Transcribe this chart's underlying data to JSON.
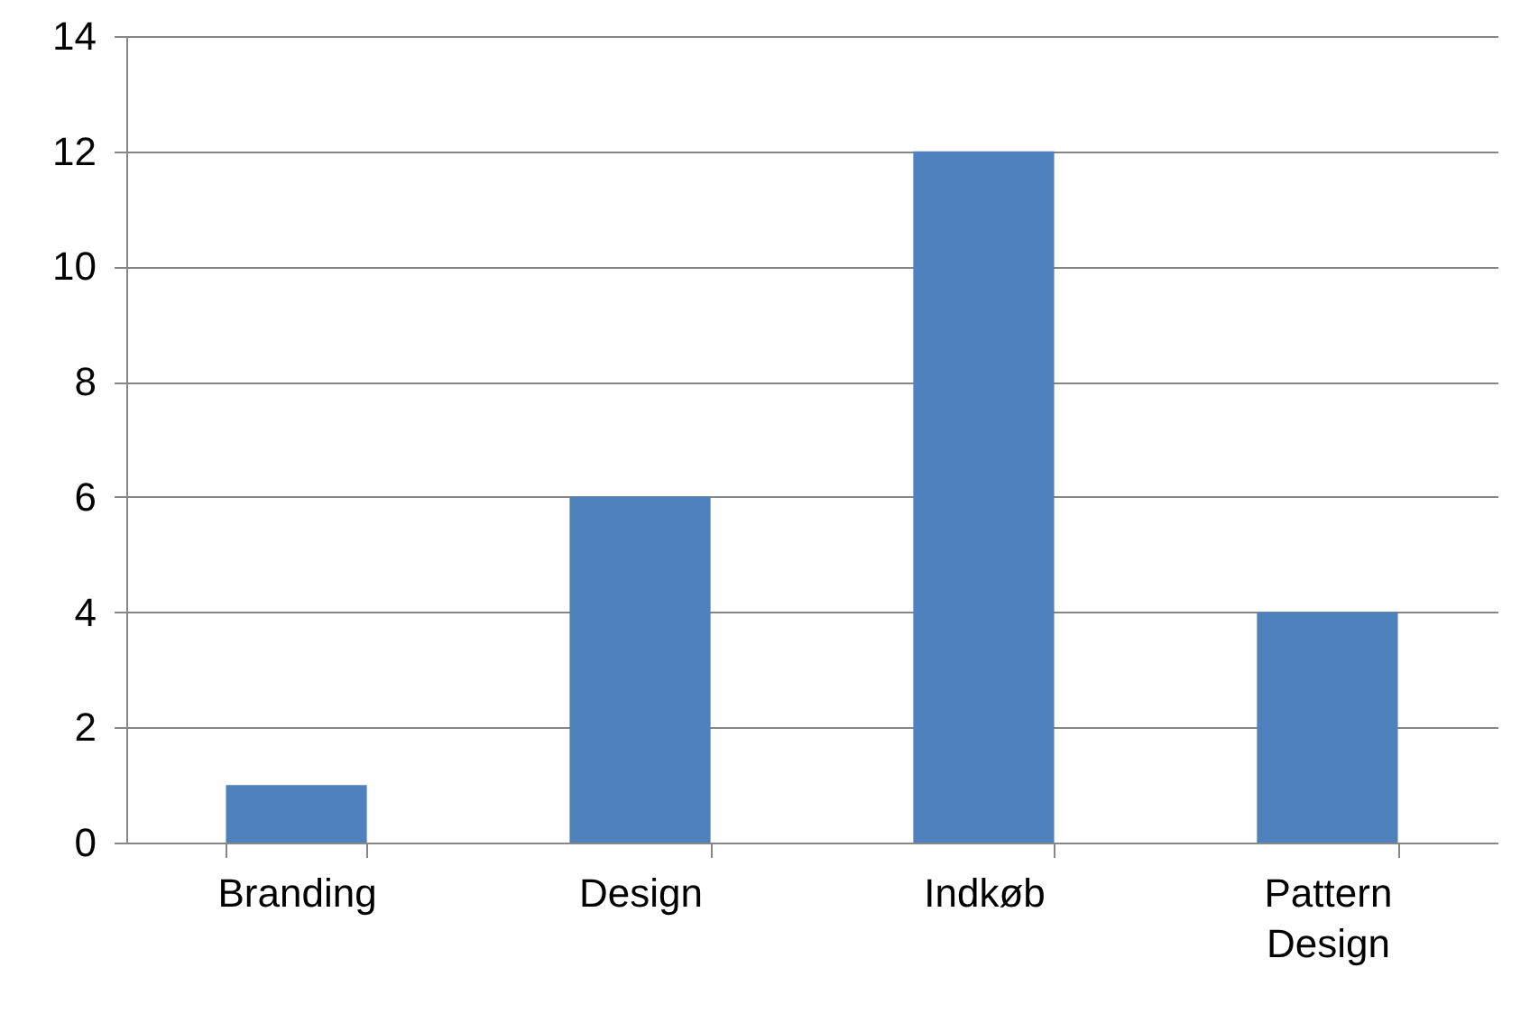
{
  "chart_data": {
    "type": "bar",
    "categories": [
      "Branding",
      "Design",
      "Indkøb",
      "Pattern Design"
    ],
    "values": [
      1,
      6,
      12,
      4
    ],
    "color": "#4f81bd",
    "ylim": [
      0,
      14
    ],
    "yticks": [
      0,
      2,
      4,
      6,
      8,
      10,
      12,
      14
    ],
    "grid": "y",
    "legend": false
  }
}
